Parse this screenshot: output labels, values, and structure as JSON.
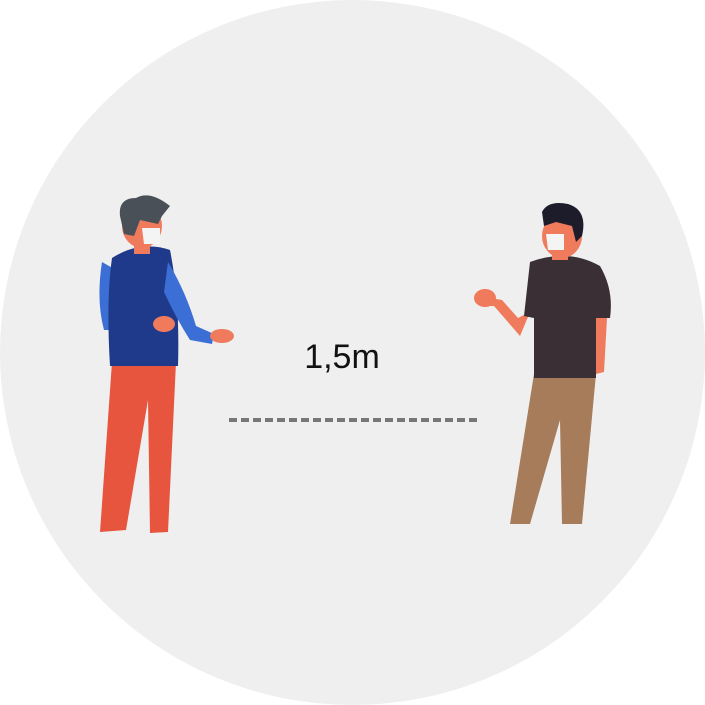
{
  "distance": {
    "label": "1,5m"
  },
  "colors": {
    "background_circle": "#efefef",
    "skin": "#f07a5c",
    "mask": "#f4f4f4",
    "person_left_hair": "#4a5057",
    "person_left_vest": "#1f3a8a",
    "person_left_sleeves": "#3b6fd6",
    "person_left_pants": "#e8553f",
    "person_right_hair": "#1c1c2a",
    "person_right_shirt": "#3a2f35",
    "person_right_pants": "#a67c5b",
    "dashed_line": "#777777"
  }
}
